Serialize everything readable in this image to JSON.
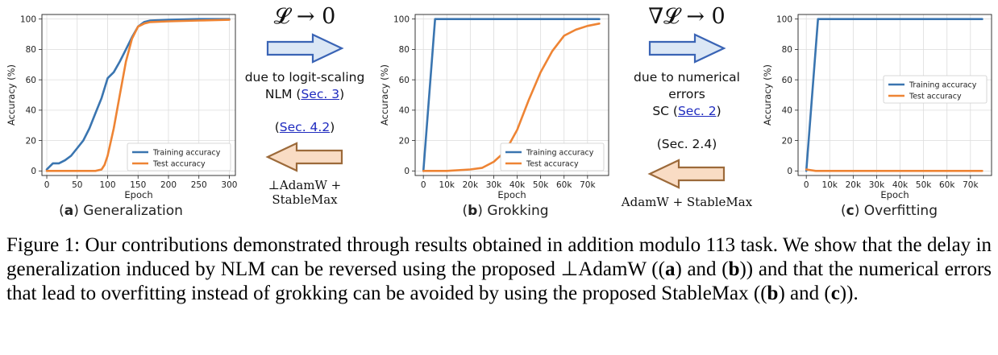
{
  "caption": {
    "figure_label": "Figure 1:",
    "part1": "Our contributions demonstrated through results obtained in addition modulo 113 task. We show that the delay in generalization induced by NLM can be reversed using the proposed ⊥AdamW ((",
    "bold_a": "a",
    "part2": ") and (",
    "bold_b": "b",
    "part3": ")) and that the numerical errors that lead to overfitting instead of grokking can be avoided by using the proposed StableMax ((",
    "bold_b2": "b",
    "part4": ") and (",
    "bold_c": "c",
    "part5": "))."
  },
  "annotations": {
    "left": {
      "formula": "𝓛 → 0",
      "line1": "due to logit-scaling",
      "line2_prefix": "NLM (",
      "line2_link": "Sec. 3",
      "line2_suffix": ")",
      "back_prefix": "(",
      "back_link": "Sec. 4.2",
      "back_suffix": ")",
      "back_formula": "⊥AdamW + StableMax",
      "forward_arrow_color": "#dbe7f5",
      "forward_arrow_stroke": "#3a64b5",
      "back_arrow_color": "#f9dcc4",
      "back_arrow_stroke": "#9c6a3a"
    },
    "right": {
      "formula": "∇𝓛 → 0",
      "line1": "due to numerical errors",
      "line2_prefix": "SC (",
      "line2_link": "Sec. 2",
      "line2_suffix": ")",
      "back_text": "(Sec. 2.4)",
      "back_formula": "AdamW + StableMax"
    }
  },
  "subcaptions": [
    {
      "letter": "a",
      "text": "Generalization"
    },
    {
      "letter": "b",
      "text": "Grokking"
    },
    {
      "letter": "c",
      "text": "Overfitting"
    }
  ],
  "chart_data": [
    {
      "type": "line",
      "panel": "a",
      "xlabel": "Epoch",
      "ylabel": "Accuracy (%)",
      "xlim": [
        -8,
        310
      ],
      "ylim": [
        -3,
        103
      ],
      "xticks": [
        0,
        50,
        100,
        150,
        200,
        250,
        300
      ],
      "xtick_labels": [
        "0",
        "50",
        "100",
        "150",
        "200",
        "250",
        "300"
      ],
      "yticks": [
        0,
        20,
        40,
        60,
        80,
        100
      ],
      "ytick_labels": [
        "0",
        "20",
        "40",
        "60",
        "80",
        "100"
      ],
      "grid": true,
      "legend_position": "lower-right",
      "series": [
        {
          "name": "Training accuracy",
          "color": "#3a75b0",
          "x": [
            0,
            10,
            20,
            30,
            40,
            50,
            60,
            70,
            80,
            90,
            100,
            110,
            120,
            130,
            140,
            150,
            160,
            170,
            200,
            250,
            300
          ],
          "y": [
            1,
            5,
            5,
            7,
            10,
            15,
            20,
            28,
            38,
            48,
            61,
            65,
            72,
            80,
            88,
            95,
            98,
            99,
            99.5,
            100,
            100
          ]
        },
        {
          "name": "Test accuracy",
          "color": "#ee8434",
          "x": [
            0,
            50,
            80,
            90,
            95,
            100,
            110,
            120,
            130,
            140,
            150,
            160,
            170,
            200,
            250,
            300
          ],
          "y": [
            0,
            0,
            0,
            1,
            4,
            10,
            28,
            50,
            72,
            87,
            95,
            97,
            98,
            98.5,
            99,
            99.5
          ]
        }
      ]
    },
    {
      "type": "line",
      "panel": "b",
      "xlabel": "Epoch",
      "ylabel": "Accuracy (%)",
      "xlim": [
        -3500,
        79000
      ],
      "ylim": [
        -3,
        103
      ],
      "xticks": [
        0,
        10000,
        20000,
        30000,
        40000,
        50000,
        60000,
        70000
      ],
      "xtick_labels": [
        "0",
        "10k",
        "20k",
        "30k",
        "40k",
        "50k",
        "60k",
        "70k"
      ],
      "yticks": [
        0,
        20,
        40,
        60,
        80,
        100
      ],
      "ytick_labels": [
        "0",
        "20",
        "40",
        "60",
        "80",
        "100"
      ],
      "grid": true,
      "legend_position": "lower-right",
      "series": [
        {
          "name": "Training accuracy",
          "color": "#3a75b0",
          "x": [
            0,
            5000,
            75000
          ],
          "y": [
            0,
            100,
            100
          ]
        },
        {
          "name": "Test accuracy",
          "color": "#ee8434",
          "x": [
            0,
            10000,
            20000,
            25000,
            30000,
            35000,
            40000,
            45000,
            50000,
            55000,
            60000,
            65000,
            70000,
            75000
          ],
          "y": [
            0,
            0,
            1,
            2,
            6,
            13,
            27,
            47,
            65,
            79,
            89,
            93,
            95.5,
            97
          ]
        }
      ]
    },
    {
      "type": "line",
      "panel": "c",
      "xlabel": "Epoch",
      "ylabel": "Accuracy (%)",
      "xlim": [
        -3500,
        79000
      ],
      "ylim": [
        -3,
        103
      ],
      "xticks": [
        0,
        10000,
        20000,
        30000,
        40000,
        50000,
        60000,
        70000
      ],
      "xtick_labels": [
        "0",
        "10k",
        "20k",
        "30k",
        "40k",
        "50k",
        "60k",
        "70k"
      ],
      "yticks": [
        0,
        20,
        40,
        60,
        80,
        100
      ],
      "ytick_labels": [
        "0",
        "20",
        "40",
        "60",
        "80",
        "100"
      ],
      "grid": true,
      "legend_position": "center-right",
      "series": [
        {
          "name": "Training accuracy",
          "color": "#3a75b0",
          "x": [
            0,
            5000,
            75000
          ],
          "y": [
            0,
            100,
            100
          ]
        },
        {
          "name": "Test accuracy",
          "color": "#ee8434",
          "x": [
            0,
            4000,
            75000
          ],
          "y": [
            1,
            0,
            0
          ]
        }
      ]
    }
  ]
}
